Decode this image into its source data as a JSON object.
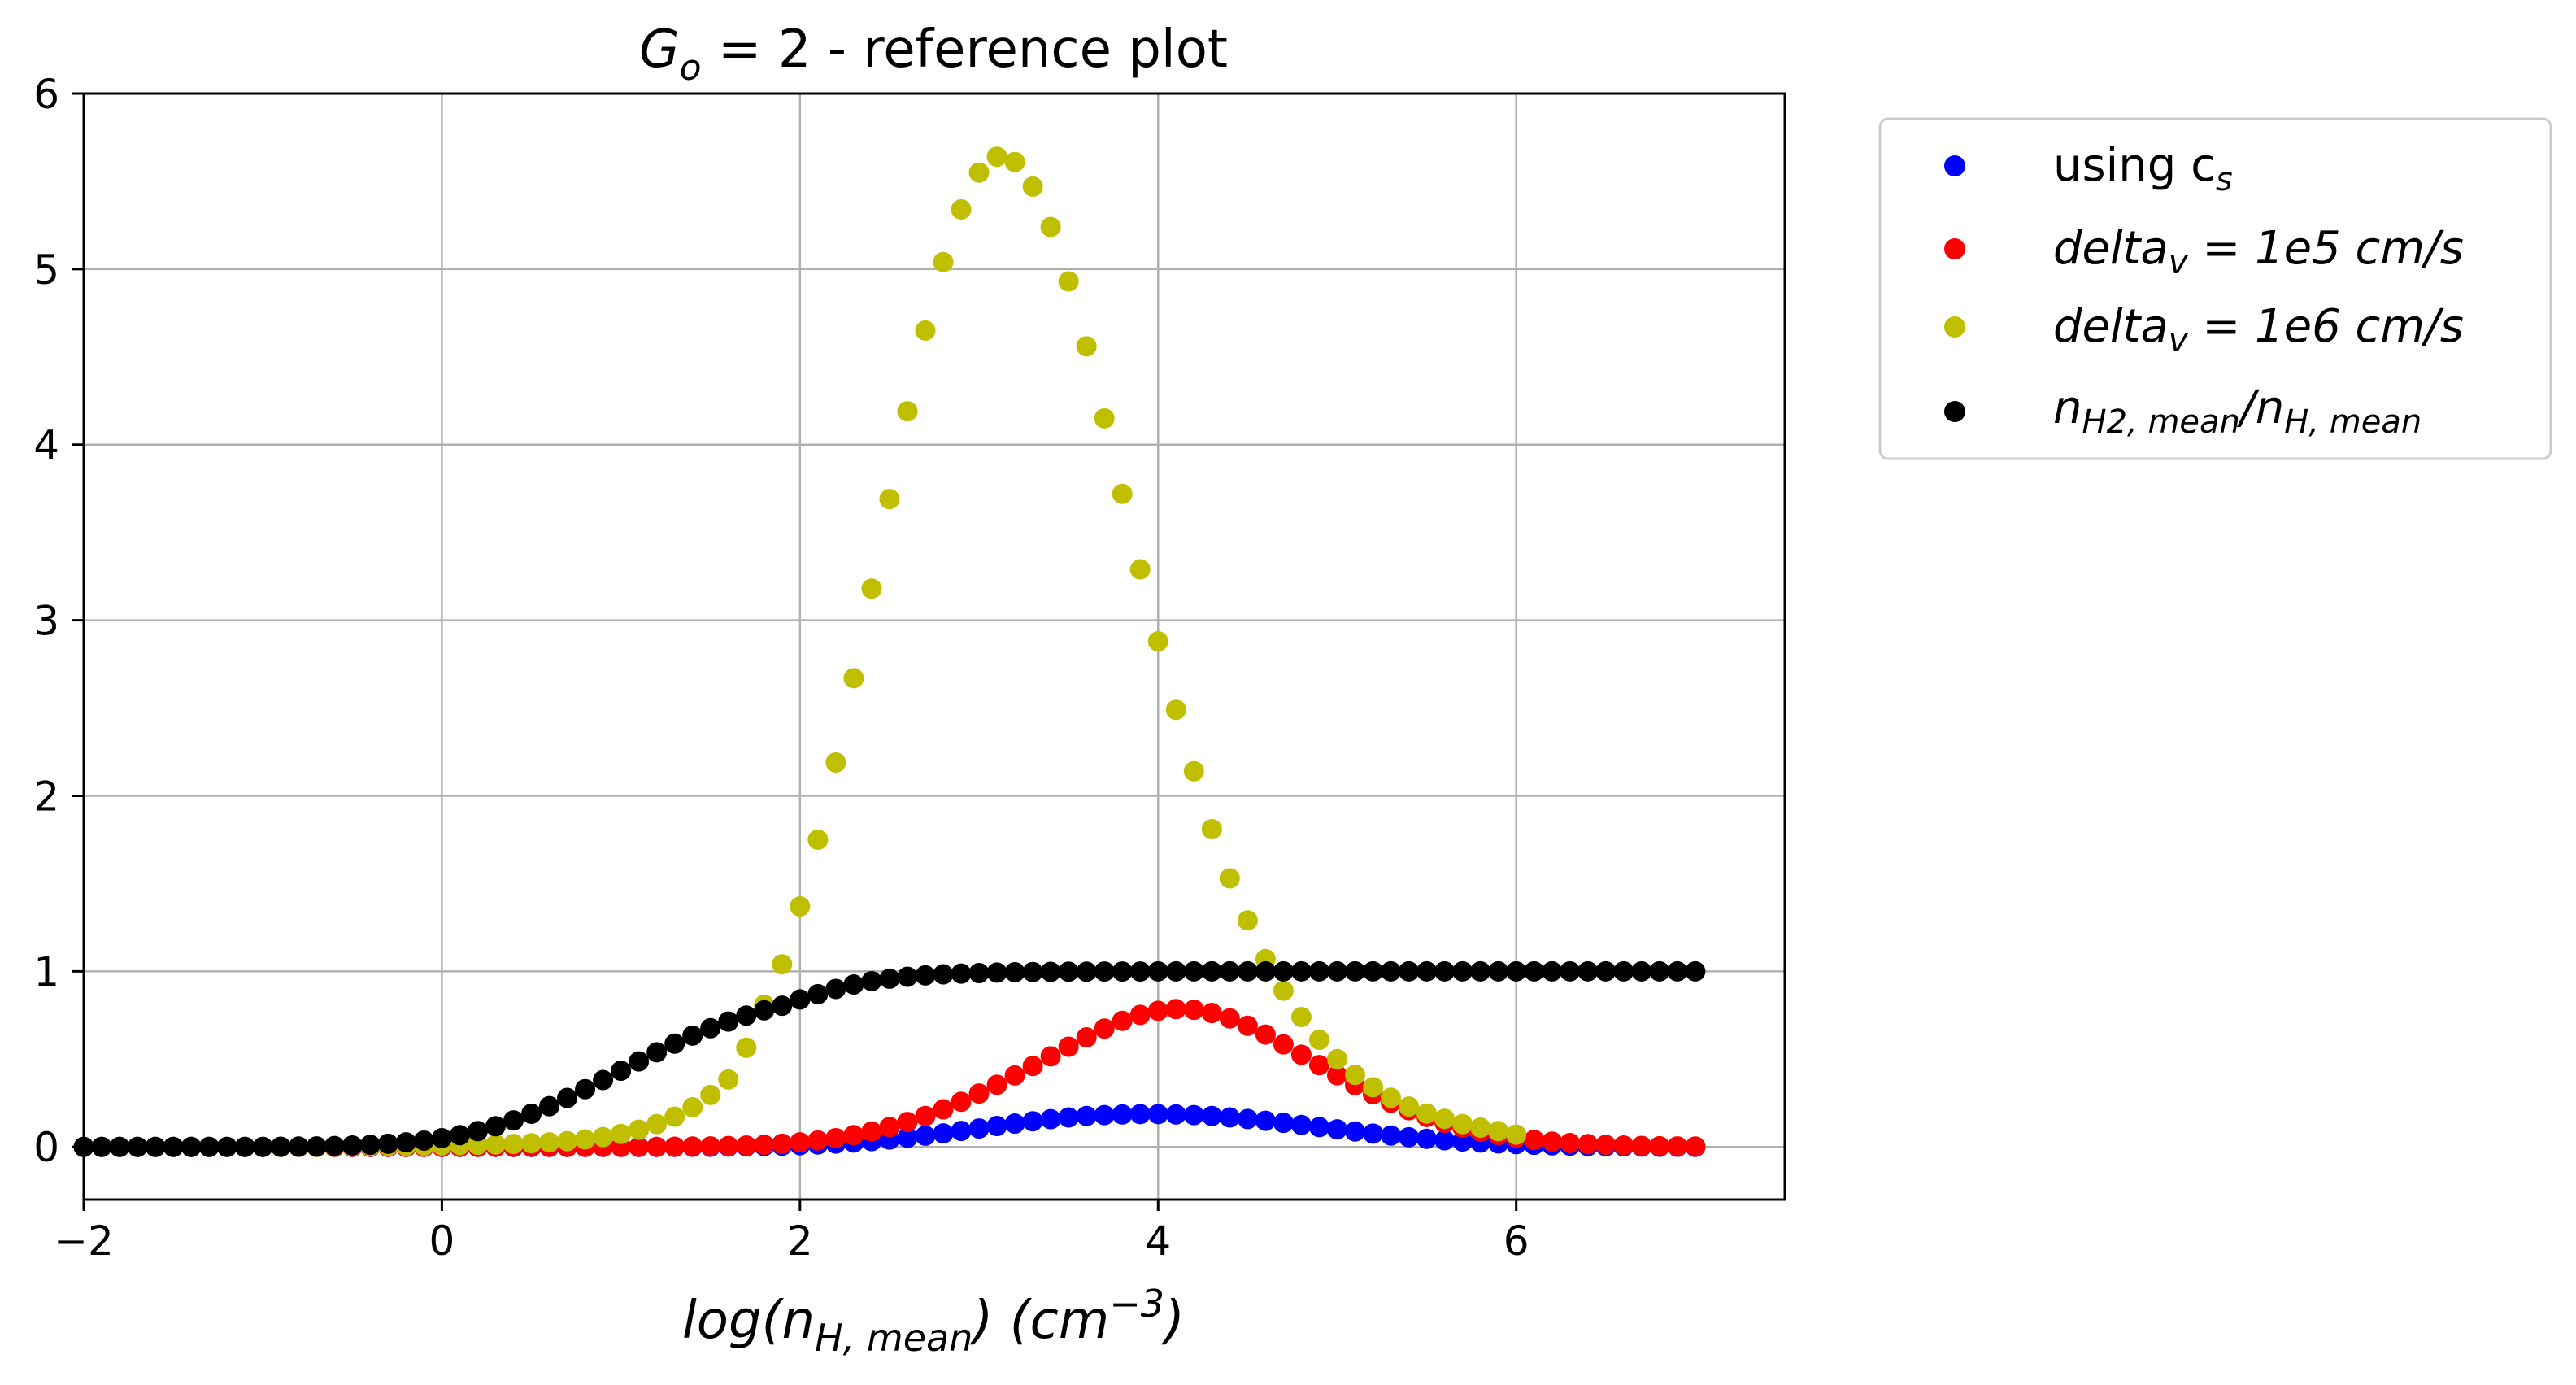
{
  "chart_data": {
    "type": "scatter",
    "title": {
      "main": "G",
      "sub": "o",
      "rest": " = 2 - reference plot"
    },
    "xlabel": {
      "pre": "log(n",
      "sub": "H, mean",
      "mid": ") (cm",
      "sup": "−3",
      "post": ")"
    },
    "ylabel": "",
    "xlim": [
      -2,
      7.5
    ],
    "ylim": [
      -0.3,
      6
    ],
    "xticks": [
      -2,
      0,
      2,
      4,
      6
    ],
    "yticks": [
      0,
      1,
      2,
      3,
      4,
      5,
      6
    ],
    "xtick_labels": [
      "−2",
      "0",
      "2",
      "4",
      "6"
    ],
    "ytick_labels": [
      "0",
      "1",
      "2",
      "3",
      "4",
      "5",
      "6"
    ],
    "grid": true,
    "legend_position": "outside-top-right",
    "x_start": -2.0,
    "x_step": 0.1,
    "series": [
      {
        "name": "using c_s",
        "legend": {
          "pre": "using c",
          "sub": "s",
          "post": "",
          "italic": false
        },
        "color": "#0000ff",
        "values": [
          0,
          0,
          0,
          0,
          0,
          0,
          0,
          0,
          0,
          0,
          0,
          0,
          0,
          0,
          0,
          0,
          0,
          0,
          0,
          0,
          0,
          0,
          0,
          0,
          0,
          0,
          0,
          0,
          0,
          0,
          0,
          0,
          0,
          0,
          0.001,
          0.001,
          0.002,
          0.003,
          0.005,
          0.007,
          0.01,
          0.014,
          0.019,
          0.025,
          0.033,
          0.042,
          0.052,
          0.064,
          0.077,
          0.091,
          0.105,
          0.119,
          0.133,
          0.146,
          0.158,
          0.168,
          0.176,
          0.181,
          0.185,
          0.187,
          0.187,
          0.185,
          0.181,
          0.176,
          0.168,
          0.159,
          0.149,
          0.137,
          0.125,
          0.113,
          0.1,
          0.088,
          0.076,
          0.065,
          0.055,
          0.046,
          0.038,
          0.031,
          0.025,
          0.02,
          0.016,
          0.012,
          0.009,
          0.007,
          0.005,
          0.004,
          0.003,
          0.002,
          0.001,
          0.001,
          0
        ]
      },
      {
        "name": "delta_v = 1e5 cm/s",
        "legend": {
          "pre": "delta",
          "sub": "v",
          "post": " = 1e5 cm/s",
          "italic": true
        },
        "color": "#ff0000",
        "values": [
          0,
          0,
          0,
          0,
          0,
          0,
          0,
          0,
          0,
          0,
          0,
          0,
          0,
          0,
          0,
          0,
          0,
          0,
          0,
          0,
          0,
          0,
          0,
          0,
          0,
          0,
          0,
          0,
          0,
          0,
          0,
          0,
          0,
          0.001,
          0.002,
          0.003,
          0.005,
          0.008,
          0.012,
          0.018,
          0.026,
          0.037,
          0.05,
          0.067,
          0.088,
          0.113,
          0.142,
          0.176,
          0.214,
          0.257,
          0.304,
          0.354,
          0.407,
          0.461,
          0.516,
          0.571,
          0.624,
          0.674,
          0.718,
          0.752,
          0.775,
          0.785,
          0.781,
          0.763,
          0.732,
          0.69,
          0.64,
          0.584,
          0.525,
          0.466,
          0.408,
          0.352,
          0.3,
          0.252,
          0.209,
          0.171,
          0.138,
          0.11,
          0.087,
          0.068,
          0.052,
          0.04,
          0.03,
          0.022,
          0.016,
          0.012,
          0.008,
          0.006,
          0.004,
          0.003,
          0.002
        ]
      },
      {
        "name": "delta_v = 1e6 cm/s",
        "legend": {
          "pre": "delta",
          "sub": "v",
          "post": " = 1e6 cm/s",
          "italic": true
        },
        "color": "#bfbf00",
        "values": [
          0,
          0,
          0,
          0,
          0,
          0,
          0,
          0,
          0,
          0,
          0,
          0,
          0.001,
          0.001,
          0.002,
          0.003,
          0.004,
          0.005,
          0.006,
          0.007,
          0.009,
          0.01,
          0.012,
          0.014,
          0.017,
          0.021,
          0.026,
          0.033,
          0.043,
          0.056,
          0.074,
          0.098,
          0.13,
          0.172,
          0.226,
          0.296,
          0.384,
          0.565,
          0.81,
          1.04,
          1.37,
          1.75,
          2.19,
          2.67,
          3.18,
          3.69,
          4.19,
          4.65,
          5.04,
          5.34,
          5.55,
          5.64,
          5.61,
          5.47,
          5.24,
          4.93,
          4.56,
          4.15,
          3.72,
          3.29,
          2.88,
          2.49,
          2.14,
          1.81,
          1.53,
          1.29,
          1.07,
          0.89,
          0.74,
          0.61,
          0.5,
          0.41,
          0.34,
          0.28,
          0.23,
          0.19,
          0.16,
          0.13,
          0.11,
          0.09,
          0.07
        ]
      },
      {
        "name": "n_H2,mean/n_H,mean",
        "legend": {
          "pre": "n",
          "sub": "H2, mean",
          "mid": "/n",
          "sub2": "H, mean",
          "italic": true
        },
        "color": "#000000",
        "values": [
          0,
          0,
          0,
          0,
          0,
          0,
          0,
          0,
          0,
          0,
          0,
          0.001,
          0.002,
          0.003,
          0.005,
          0.008,
          0.012,
          0.018,
          0.026,
          0.036,
          0.05,
          0.067,
          0.09,
          0.118,
          0.151,
          0.189,
          0.232,
          0.279,
          0.329,
          0.381,
          0.434,
          0.487,
          0.539,
          0.588,
          0.634,
          0.676,
          0.714,
          0.748,
          0.778,
          0.804,
          0.84,
          0.87,
          0.9,
          0.925,
          0.944,
          0.958,
          0.969,
          0.977,
          0.983,
          0.987,
          0.99,
          0.993,
          0.995,
          0.996,
          0.997,
          0.998,
          0.998,
          0.999,
          0.999,
          0.999,
          1,
          1,
          1,
          1,
          1,
          1,
          1,
          1,
          1,
          1,
          1,
          1,
          1,
          1,
          1,
          1,
          1,
          1,
          1,
          1,
          1,
          1,
          1,
          1,
          1,
          1,
          1,
          1,
          1,
          1,
          1
        ]
      }
    ]
  }
}
